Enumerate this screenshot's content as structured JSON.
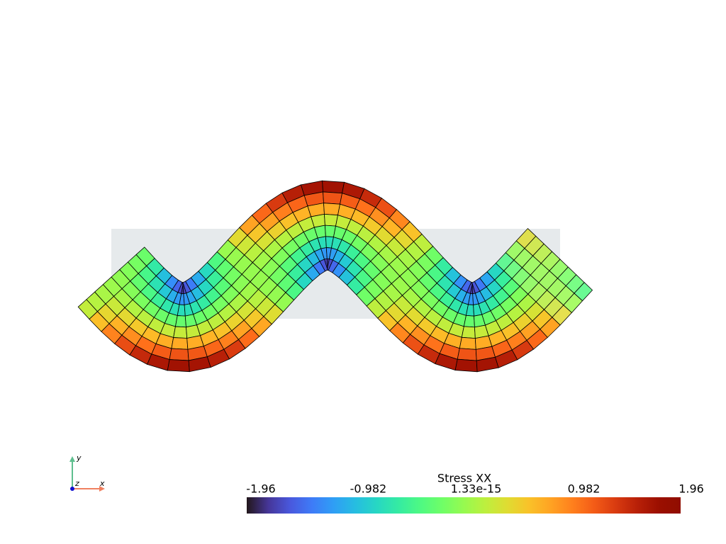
{
  "scalar_bar": {
    "title": "Stress XX",
    "clim": [
      -1.96,
      1.96
    ],
    "ticks": [
      -1.96,
      -0.982,
      1.33e-15,
      0.982,
      1.96
    ],
    "colormap": "turbo"
  },
  "axes_widget": {
    "x": "x",
    "y": "y",
    "z": "z"
  }
}
